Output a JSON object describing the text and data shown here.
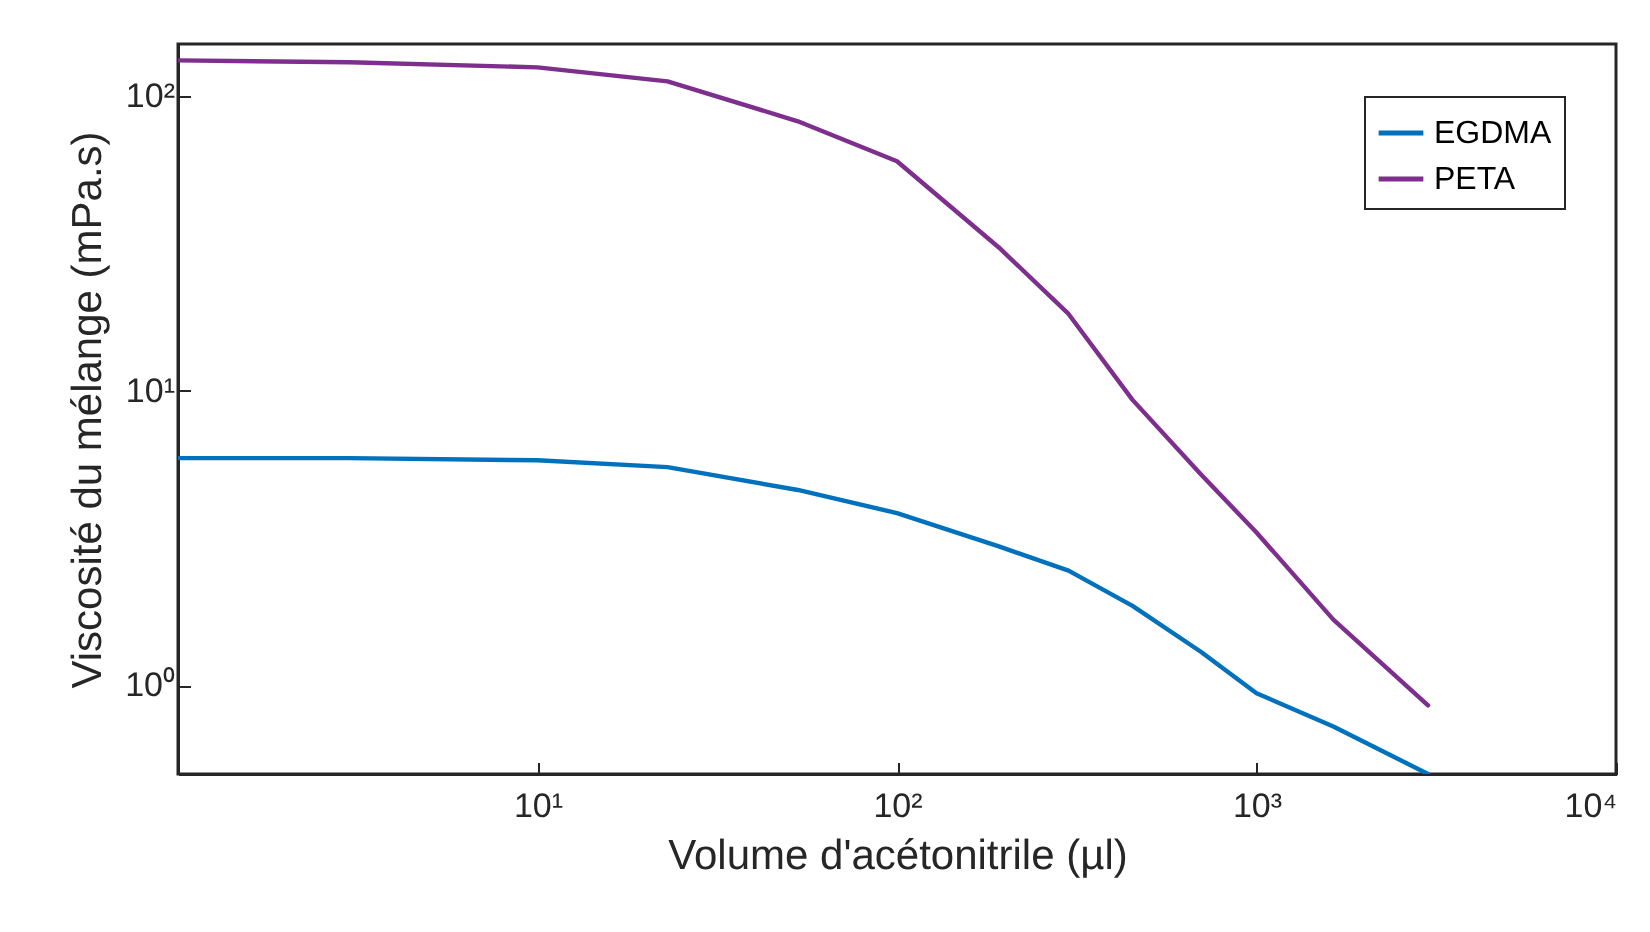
{
  "chart_data": {
    "type": "line",
    "xlabel": "Volume d'acétonitrile (µl)",
    "ylabel": "Viscosité du  mélange (mPa.s)",
    "x": [
      1,
      3,
      10,
      23,
      53,
      100,
      192,
      300,
      452,
      700,
      1000,
      1636,
      3000
    ],
    "series": [
      {
        "name": "EGDMA",
        "color": "#0072bd",
        "values": [
          5.9,
          5.9,
          5.8,
          5.5,
          4.6,
          3.84,
          2.96,
          2.45,
          1.86,
          1.3,
          0.94,
          0.725,
          0.5
        ]
      },
      {
        "name": "PETA",
        "color": "#7e2f8e",
        "values": [
          132,
          130,
          125,
          112,
          82,
          60,
          30.6,
          18.2,
          9.3,
          5.2,
          3.3,
          1.67,
          0.855
        ]
      }
    ],
    "log": "xy",
    "xlim": [
      1,
      10000
    ],
    "ylim": [
      0.5,
      150
    ],
    "xticks": [
      {
        "value": 10,
        "label": "10¹"
      },
      {
        "value": 100,
        "label": "10²"
      },
      {
        "value": 1000,
        "label": "10³"
      },
      {
        "value": 10000,
        "label": "10⁴"
      }
    ],
    "yticks": [
      {
        "value": 1,
        "label": "10⁰"
      },
      {
        "value": 10,
        "label": "10¹"
      },
      {
        "value": 100,
        "label": "10²"
      }
    ],
    "grid": false,
    "legend": "top right",
    "marker": "none",
    "line_style": "solid"
  }
}
